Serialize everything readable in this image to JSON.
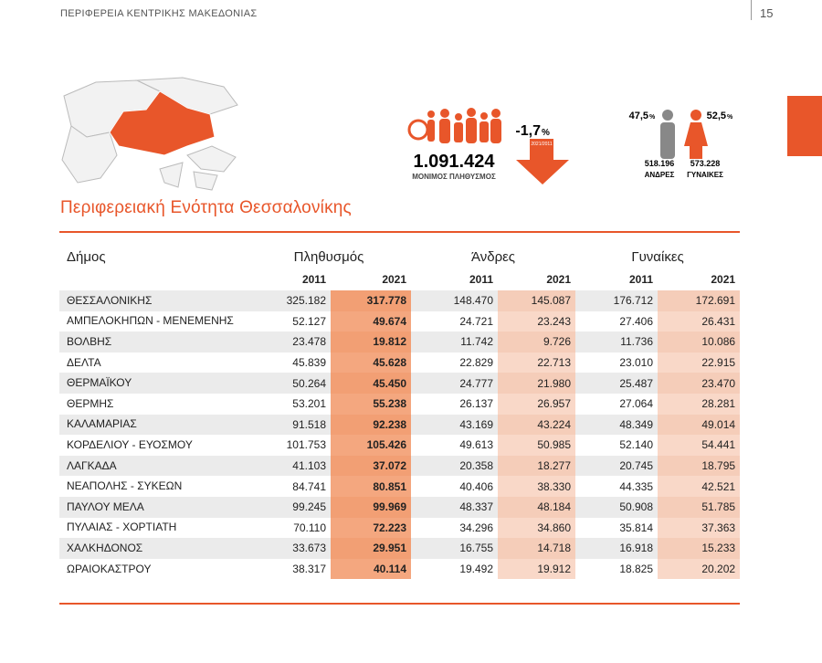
{
  "header": {
    "title": "ΠΕΡΙΦΕΡΕΙΑ ΚΕΝΤΡΙΚΗΣ ΜΑΚΕΔΟΝΙΑΣ",
    "page": "15"
  },
  "summary": {
    "population": "1.091.424",
    "population_label": "ΜΟΝΙΜΟΣ ΠΛΗΘΥΣΜΟΣ",
    "change": "-1,7",
    "change_unit": "%",
    "change_period": "2021/2011",
    "men_share": "47,5",
    "women_share": "52,5",
    "share_unit": "%",
    "men": "518.196",
    "men_label": "ΑΝΔΡΕΣ",
    "women": "573.228",
    "women_label": "ΓΥΝΑΙΚΕΣ"
  },
  "section_title": "Περιφερειακή Ενότητα Θεσσαλονίκης",
  "table": {
    "header": [
      "Δήμος",
      "Πληθυσμός",
      "Άνδρες",
      "Γυναίκες"
    ],
    "years": [
      "2011",
      "2021",
      "2011",
      "2021",
      "2011",
      "2021"
    ],
    "rows": [
      [
        "ΘΕΣΣΑΛΟΝΙΚΗΣ",
        "325.182",
        "317.778",
        "148.470",
        "145.087",
        "176.712",
        "172.691"
      ],
      [
        "ΑΜΠΕΛΟΚΗΠΩΝ - ΜΕΝΕΜΕΝΗΣ",
        "52.127",
        "49.674",
        "24.721",
        "23.243",
        "27.406",
        "26.431"
      ],
      [
        "ΒΟΛΒΗΣ",
        "23.478",
        "19.812",
        "11.742",
        "9.726",
        "11.736",
        "10.086"
      ],
      [
        "ΔΕΛΤΑ",
        "45.839",
        "45.628",
        "22.829",
        "22.713",
        "23.010",
        "22.915"
      ],
      [
        "ΘΕΡΜΑΪΚΟΥ",
        "50.264",
        "45.450",
        "24.777",
        "21.980",
        "25.487",
        "23.470"
      ],
      [
        "ΘΕΡΜΗΣ",
        "53.201",
        "55.238",
        "26.137",
        "26.957",
        "27.064",
        "28.281"
      ],
      [
        "ΚΑΛΑΜΑΡΙΑΣ",
        "91.518",
        "92.238",
        "43.169",
        "43.224",
        "48.349",
        "49.014"
      ],
      [
        "ΚΟΡΔΕΛΙΟΥ - ΕΥΟΣΜΟΥ",
        "101.753",
        "105.426",
        "49.613",
        "50.985",
        "52.140",
        "54.441"
      ],
      [
        "ΛΑΓΚΑΔΑ",
        "41.103",
        "37.072",
        "20.358",
        "18.277",
        "20.745",
        "18.795"
      ],
      [
        "ΝΕΑΠΟΛΗΣ - ΣΥΚΕΩΝ",
        "84.741",
        "80.851",
        "40.406",
        "38.330",
        "44.335",
        "42.521"
      ],
      [
        "ΠΑΥΛΟΥ ΜΕΛΑ",
        "99.245",
        "99.969",
        "48.337",
        "48.184",
        "50.908",
        "51.785"
      ],
      [
        "ΠΥΛΑΙΑΣ - ΧΟΡΤΙΑΤΗ",
        "70.110",
        "72.223",
        "34.296",
        "34.860",
        "35.814",
        "37.363"
      ],
      [
        "ΧΑΛΚΗΔΟΝΟΣ",
        "33.673",
        "29.951",
        "16.755",
        "14.718",
        "16.918",
        "15.233"
      ],
      [
        "ΩΡΑΙΟΚΑΣΤΡΟΥ",
        "38.317",
        "40.114",
        "19.492",
        "19.912",
        "18.825",
        "20.202"
      ]
    ]
  }
}
